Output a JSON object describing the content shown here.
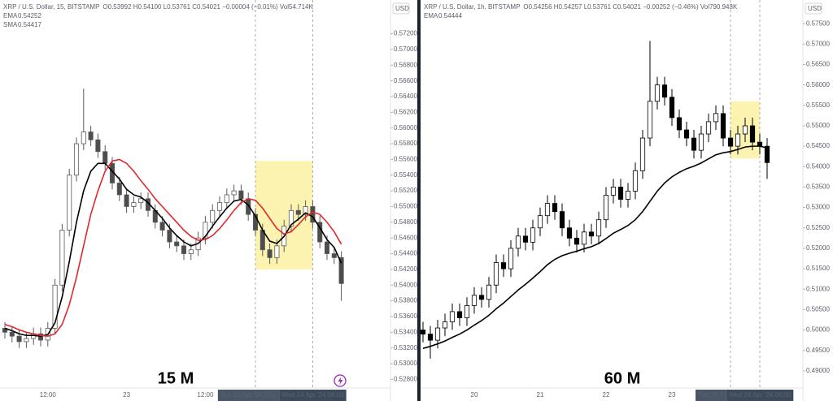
{
  "chart_data": [
    {
      "type": "candlestick",
      "symbol": "XRP / U.S. Dollar, 15, BITSTAMP",
      "quote": "O0.53992 H0.54100 L0.53761 C0.54021 −0.00004 (−0.01%) Vol54.714K",
      "currency": "USD",
      "annotation": "15 M",
      "categories": [
        null,
        null,
        null,
        null,
        null,
        null,
        "12:00",
        null,
        null,
        null,
        null,
        null,
        null,
        null,
        null,
        null,
        null,
        "23",
        null,
        null,
        null,
        null,
        null,
        null,
        null,
        null,
        null,
        null,
        "12:00",
        null,
        null,
        null,
        null,
        null,
        null,
        null,
        null,
        null,
        null,
        null,
        null,
        null,
        null,
        null,
        null,
        null,
        null,
        null
      ],
      "open": [
        0.5345,
        0.534,
        0.5335,
        0.5328,
        0.5332,
        0.5338,
        0.533,
        0.5345,
        0.54,
        0.547,
        0.554,
        0.558,
        0.5595,
        0.5585,
        0.557,
        0.5555,
        0.553,
        0.5515,
        0.55,
        0.5505,
        0.551,
        0.5495,
        0.548,
        0.547,
        0.5455,
        0.545,
        0.544,
        0.5445,
        0.546,
        0.548,
        0.5495,
        0.5505,
        0.5515,
        0.552,
        0.551,
        0.549,
        0.547,
        0.5445,
        0.5435,
        0.545,
        0.5475,
        0.5495,
        0.549,
        0.55,
        0.548,
        0.5455,
        0.544,
        0.5435
      ],
      "high": [
        0.5353,
        0.5348,
        0.5343,
        0.534,
        0.5346,
        0.5346,
        0.5353,
        0.5408,
        0.5478,
        0.5548,
        0.5588,
        0.565,
        0.5603,
        0.5593,
        0.5578,
        0.5563,
        0.5538,
        0.5523,
        0.5513,
        0.5518,
        0.5518,
        0.5503,
        0.5488,
        0.5478,
        0.5463,
        0.5458,
        0.5453,
        0.5468,
        0.5488,
        0.5503,
        0.5513,
        0.5523,
        0.5528,
        0.5528,
        0.5518,
        0.5498,
        0.5478,
        0.5453,
        0.5458,
        0.5483,
        0.5503,
        0.5503,
        0.5508,
        0.5508,
        0.5488,
        0.5463,
        0.5448,
        0.5443
      ],
      "low": [
        0.5332,
        0.5327,
        0.532,
        0.532,
        0.5324,
        0.5322,
        0.5322,
        0.5337,
        0.5392,
        0.5462,
        0.5532,
        0.5572,
        0.5577,
        0.5562,
        0.5547,
        0.5522,
        0.5507,
        0.5492,
        0.5492,
        0.5497,
        0.5487,
        0.5472,
        0.5462,
        0.5447,
        0.5442,
        0.5432,
        0.5432,
        0.5437,
        0.5452,
        0.5472,
        0.5487,
        0.5497,
        0.5507,
        0.5502,
        0.5482,
        0.5462,
        0.5437,
        0.5427,
        0.5427,
        0.5442,
        0.5467,
        0.5482,
        0.5482,
        0.5472,
        0.5447,
        0.5432,
        0.5427,
        0.538
      ],
      "close": [
        0.534,
        0.5335,
        0.5328,
        0.5332,
        0.5338,
        0.533,
        0.5345,
        0.54,
        0.547,
        0.554,
        0.558,
        0.5595,
        0.5585,
        0.557,
        0.5555,
        0.553,
        0.5515,
        0.55,
        0.5505,
        0.551,
        0.5495,
        0.548,
        0.547,
        0.5455,
        0.545,
        0.544,
        0.5445,
        0.546,
        0.548,
        0.5495,
        0.5505,
        0.5515,
        0.552,
        0.551,
        0.549,
        0.547,
        0.5445,
        0.5435,
        0.545,
        0.5475,
        0.5495,
        0.549,
        0.55,
        0.548,
        0.5455,
        0.544,
        0.5435,
        0.5402
      ],
      "up_color": "#ffffff",
      "down_color": "#4d4d4d",
      "wick_color": "#5a5a5a",
      "indicators": [
        {
          "name": "EMA",
          "last": 0.54252,
          "color": "#000000",
          "values": [
            0.5345,
            0.5342,
            0.5338,
            0.5336,
            0.5336,
            0.5335,
            0.5337,
            0.5352,
            0.5385,
            0.543,
            0.548,
            0.552,
            0.5545,
            0.5555,
            0.5555,
            0.5545,
            0.5535,
            0.5522,
            0.5515,
            0.5512,
            0.5505,
            0.5495,
            0.5485,
            0.5473,
            0.5463,
            0.5455,
            0.545,
            0.5453,
            0.5462,
            0.5475,
            0.5487,
            0.5498,
            0.5507,
            0.5509,
            0.5502,
            0.5488,
            0.547,
            0.5456,
            0.5453,
            0.5462,
            0.5477,
            0.5484,
            0.5492,
            0.5487,
            0.5473,
            0.5458,
            0.5448,
            0.5428
          ]
        },
        {
          "name": "SMA",
          "last": 0.54417,
          "color": "#e0282e",
          "values": [
            0.535,
            0.5347,
            0.5343,
            0.534,
            0.5338,
            0.5336,
            0.5335,
            0.5338,
            0.535,
            0.5375,
            0.541,
            0.545,
            0.549,
            0.552,
            0.5545,
            0.5558,
            0.556,
            0.5555,
            0.5545,
            0.5533,
            0.5522,
            0.551,
            0.55,
            0.549,
            0.548,
            0.547,
            0.5462,
            0.5457,
            0.5458,
            0.5463,
            0.5472,
            0.5483,
            0.5495,
            0.5505,
            0.551,
            0.5508,
            0.5498,
            0.5485,
            0.5472,
            0.5465,
            0.5468,
            0.5477,
            0.5487,
            0.5493,
            0.549,
            0.548,
            0.5468,
            0.5452
          ]
        }
      ],
      "highlight": {
        "from": 35,
        "to": 43,
        "low": 0.542,
        "high": 0.5558,
        "color": "#fdf3b0"
      },
      "x_range_labels": [
        "Tue 23 Apr '24 20:0",
        "Wed 24 Apr '24 06:00"
      ],
      "ylim": [
        0.5269,
        0.5763
      ],
      "yticks": [
        {
          "value": 0.528,
          "label": "0.52800"
        },
        {
          "value": 0.53,
          "label": "0.53000"
        },
        {
          "value": 0.532,
          "label": "0.53200"
        },
        {
          "value": 0.534,
          "label": "0.53400"
        },
        {
          "value": 0.536,
          "label": "0.53600"
        },
        {
          "value": 0.538,
          "label": "0.53800"
        },
        {
          "value": 0.54,
          "label": "0.54000"
        },
        {
          "value": 0.542,
          "label": "0.54200"
        },
        {
          "value": 0.544,
          "label": "0.54400"
        },
        {
          "value": 0.546,
          "label": "0.54600"
        },
        {
          "value": 0.548,
          "label": "0.54800"
        },
        {
          "value": 0.55,
          "label": "0.55000"
        },
        {
          "value": 0.552,
          "label": "0.55200"
        },
        {
          "value": 0.554,
          "label": "0.55400"
        },
        {
          "value": 0.556,
          "label": "0.55600"
        },
        {
          "value": 0.558,
          "label": "0.55800"
        },
        {
          "value": 0.56,
          "label": "0.56000"
        },
        {
          "value": 0.562,
          "label": "0.56200"
        },
        {
          "value": 0.564,
          "label": "0.56400"
        },
        {
          "value": 0.566,
          "label": "0.56600"
        },
        {
          "value": 0.568,
          "label": "0.56800"
        },
        {
          "value": 0.57,
          "label": "0.57000"
        },
        {
          "value": 0.572,
          "label": "0.57200"
        }
      ]
    },
    {
      "type": "candlestick",
      "symbol": "XRP / U.S. Dollar, 1h, BITSTAMP",
      "quote": "O0.54256 H0.54257 L0.53761 C0.54021 −0.00252 (−0.46%) Vol790.943K",
      "currency": "USD",
      "annotation": "60 M",
      "categories": [
        null,
        null,
        null,
        null,
        null,
        null,
        null,
        "20",
        null,
        null,
        null,
        null,
        null,
        null,
        null,
        null,
        "21",
        null,
        null,
        null,
        null,
        null,
        null,
        null,
        null,
        "22",
        null,
        null,
        null,
        null,
        null,
        null,
        null,
        null,
        "23",
        null,
        null,
        null,
        null,
        null,
        null,
        null,
        null,
        null,
        null,
        null,
        null,
        null
      ],
      "open": [
        0.5,
        0.499,
        0.4975,
        0.5005,
        0.502,
        0.5045,
        0.503,
        0.506,
        0.5085,
        0.5075,
        0.511,
        0.5165,
        0.515,
        0.52,
        0.523,
        0.5215,
        0.525,
        0.528,
        0.531,
        0.529,
        0.525,
        0.5225,
        0.521,
        0.524,
        0.523,
        0.527,
        0.533,
        0.535,
        0.532,
        0.534,
        0.539,
        0.547,
        0.556,
        0.56,
        0.557,
        0.552,
        0.549,
        0.547,
        0.544,
        0.548,
        0.551,
        0.553,
        0.547,
        0.545,
        0.548,
        0.55,
        0.546,
        0.545
      ],
      "high": [
        0.502,
        0.501,
        0.5025,
        0.504,
        0.5065,
        0.5065,
        0.508,
        0.5105,
        0.5105,
        0.513,
        0.5185,
        0.5185,
        0.522,
        0.525,
        0.525,
        0.527,
        0.53,
        0.533,
        0.533,
        0.531,
        0.527,
        0.5245,
        0.526,
        0.526,
        0.529,
        0.535,
        0.537,
        0.537,
        0.536,
        0.541,
        0.549,
        0.5708,
        0.562,
        0.562,
        0.559,
        0.554,
        0.551,
        0.549,
        0.55,
        0.553,
        0.555,
        0.555,
        0.549,
        0.55,
        0.552,
        0.552,
        0.548,
        0.547
      ],
      "low": [
        0.497,
        0.493,
        0.4955,
        0.4985,
        0.5,
        0.501,
        0.501,
        0.504,
        0.5055,
        0.5055,
        0.509,
        0.513,
        0.513,
        0.518,
        0.5195,
        0.5195,
        0.523,
        0.526,
        0.527,
        0.523,
        0.5205,
        0.519,
        0.519,
        0.521,
        0.521,
        0.525,
        0.531,
        0.53,
        0.53,
        0.532,
        0.537,
        0.545,
        0.554,
        0.555,
        0.55,
        0.547,
        0.545,
        0.542,
        0.542,
        0.546,
        0.549,
        0.545,
        0.543,
        0.543,
        0.546,
        0.544,
        0.543,
        0.537
      ],
      "close": [
        0.499,
        0.4975,
        0.5005,
        0.502,
        0.5045,
        0.503,
        0.506,
        0.5085,
        0.5075,
        0.511,
        0.5165,
        0.515,
        0.52,
        0.523,
        0.5215,
        0.525,
        0.528,
        0.531,
        0.529,
        0.525,
        0.5225,
        0.521,
        0.524,
        0.523,
        0.527,
        0.533,
        0.535,
        0.532,
        0.534,
        0.539,
        0.547,
        0.556,
        0.56,
        0.557,
        0.552,
        0.549,
        0.547,
        0.544,
        0.548,
        0.551,
        0.553,
        0.547,
        0.545,
        0.548,
        0.55,
        0.546,
        0.545,
        0.541
      ],
      "up_color": "#ffffff",
      "down_color": "#000000",
      "wick_color": "#000000",
      "indicators": [
        {
          "name": "EMA",
          "last": 0.54444,
          "color": "#000000",
          "values": [
            0.4955,
            0.496,
            0.4966,
            0.4973,
            0.4982,
            0.499,
            0.5,
            0.5012,
            0.5023,
            0.5036,
            0.5052,
            0.5066,
            0.5082,
            0.5098,
            0.5112,
            0.5127,
            0.5143,
            0.516,
            0.5173,
            0.5182,
            0.5188,
            0.5193,
            0.5199,
            0.5204,
            0.5212,
            0.5224,
            0.5237,
            0.5246,
            0.5256,
            0.527,
            0.529,
            0.5315,
            0.534,
            0.536,
            0.5375,
            0.5386,
            0.5395,
            0.5401,
            0.5409,
            0.5419,
            0.5429,
            0.5434,
            0.5437,
            0.5442,
            0.5448,
            0.545,
            0.545,
            0.5446
          ]
        }
      ],
      "highlight": {
        "from": 42,
        "to": 46,
        "low": 0.542,
        "high": 0.556,
        "color": "#fdf3b0"
      },
      "x_range_labels": [
        "Tue 23 A",
        "Wed 24 Apr '24 06:00"
      ],
      "ylim": [
        0.4858,
        0.5808
      ],
      "yticks": [
        {
          "value": 0.49,
          "label": "0.49000"
        },
        {
          "value": 0.495,
          "label": "0.49500"
        },
        {
          "value": 0.5,
          "label": "0.50000"
        },
        {
          "value": 0.505,
          "label": "0.50500"
        },
        {
          "value": 0.51,
          "label": "0.51000"
        },
        {
          "value": 0.515,
          "label": "0.51500"
        },
        {
          "value": 0.52,
          "label": "0.52000"
        },
        {
          "value": 0.525,
          "label": "0.52500"
        },
        {
          "value": 0.53,
          "label": "0.53000"
        },
        {
          "value": 0.535,
          "label": "0.53500"
        },
        {
          "value": 0.54,
          "label": "0.54000"
        },
        {
          "value": 0.545,
          "label": "0.54500"
        },
        {
          "value": 0.55,
          "label": "0.55000"
        },
        {
          "value": 0.555,
          "label": "0.55500"
        },
        {
          "value": 0.56,
          "label": "0.56000"
        },
        {
          "value": 0.565,
          "label": "0.56500"
        },
        {
          "value": 0.57,
          "label": "0.57000"
        },
        {
          "value": 0.575,
          "label": "0.57500"
        }
      ]
    }
  ]
}
